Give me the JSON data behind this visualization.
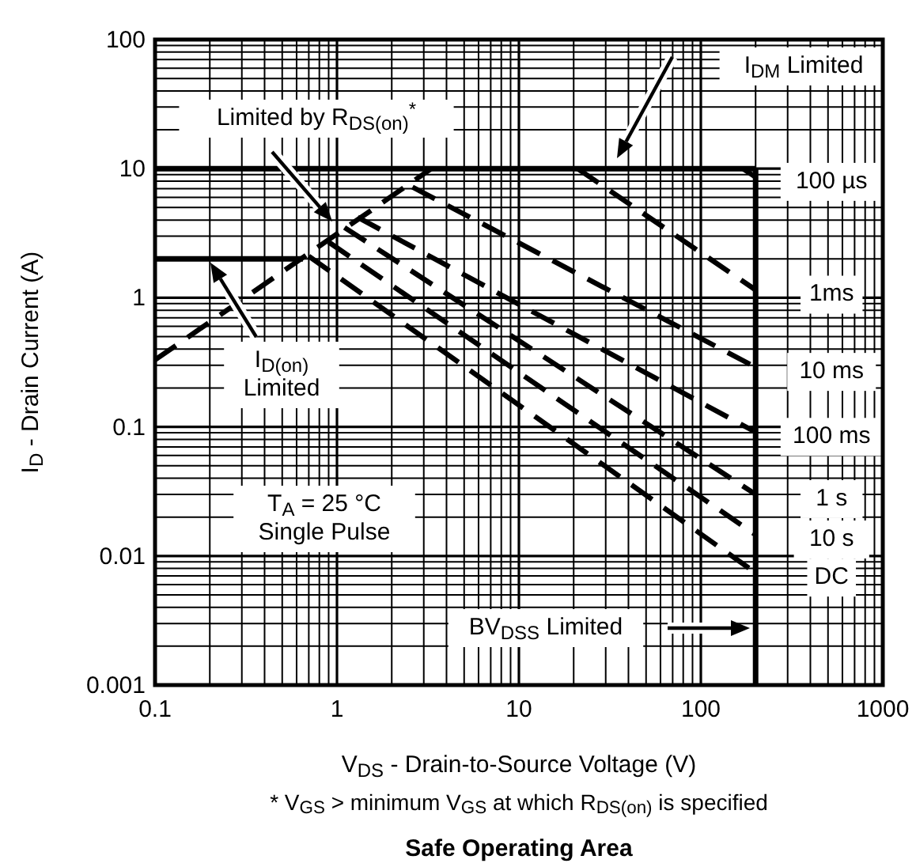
{
  "chart_data": {
    "type": "line",
    "title": "Safe Operating Area",
    "xlabel": "V$_{DS}$ - Drain-to-Source Voltage (V)",
    "ylabel": "I$_{D}$ - Drain Current (A)",
    "log": "xy",
    "grid": true,
    "xlim": [
      0.1,
      1000
    ],
    "xticks": [
      0.1,
      1,
      10,
      100,
      1000
    ],
    "ylim": [
      0.001,
      100
    ],
    "yticks": [
      0.001,
      0.01,
      0.1,
      1,
      10,
      100
    ],
    "series": [
      {
        "x": [
          0.1,
          200
        ],
        "values": [
          10,
          10
        ],
        "color": "#000000",
        "line_style": "solid"
      },
      {
        "x": [
          0.1,
          0.65
        ],
        "values": [
          2,
          2
        ],
        "color": "#000000",
        "line_style": "solid"
      },
      {
        "x": [
          200,
          200
        ],
        "values": [
          0.001,
          10
        ],
        "color": "#000000",
        "line_style": "solid"
      },
      {
        "x": [
          0.1,
          3.3
        ],
        "values": [
          0.33,
          10
        ],
        "color": "#000000",
        "line_style": "dashed"
      },
      {
        "name": "100 µs",
        "x": [
          170,
          200
        ],
        "values": [
          10,
          8.6
        ],
        "color": "#000000",
        "line_style": "dashed"
      },
      {
        "name": "1ms",
        "x": [
          21,
          200
        ],
        "values": [
          10,
          1.15
        ],
        "color": "#000000",
        "line_style": "dashed"
      },
      {
        "name": "10 ms",
        "x": [
          2.6,
          200
        ],
        "values": [
          7.2,
          0.29
        ],
        "color": "#000000",
        "line_style": "dashed"
      },
      {
        "name": "100 ms",
        "x": [
          1.3,
          200
        ],
        "values": [
          4.2,
          0.091
        ],
        "color": "#000000",
        "line_style": "dashed"
      },
      {
        "name": "1 s",
        "x": [
          1.1,
          200
        ],
        "values": [
          3.5,
          0.03
        ],
        "color": "#000000",
        "line_style": "dashed"
      },
      {
        "name": "10 s",
        "x": [
          0.9,
          200
        ],
        "values": [
          2.7,
          0.0146
        ],
        "color": "#000000",
        "line_style": "dashed"
      },
      {
        "name": "DC",
        "x": [
          0.7,
          200
        ],
        "values": [
          2.1,
          0.0074
        ],
        "color": "#000000",
        "line_style": "dashed"
      }
    ],
    "annotations": [
      "I$_{DM}$ Limited",
      "Limited by R$_{DS(on)}$$^{*}$",
      "I$_{D(on)}$\nLimited",
      "T$_{A}$ = 25 °C\nSingle Pulse",
      "BV$_{DSS}$ Limited",
      "* V$_{GS}$  > minimum V$_{GS}$ at which R$_{DS(on)}$ is specified"
    ]
  }
}
